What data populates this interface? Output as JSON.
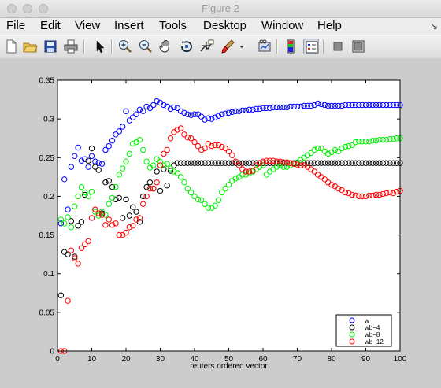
{
  "window": {
    "title": "Figure 2"
  },
  "menu": {
    "items": [
      "File",
      "Edit",
      "View",
      "Insert",
      "Tools",
      "Desktop",
      "Window",
      "Help"
    ]
  },
  "toolbar": {
    "icons": [
      "new-figure",
      "open-file",
      "save",
      "print",
      "select-arrow",
      "zoom-in",
      "zoom-out",
      "pan-hand",
      "rotate-3d",
      "data-cursor",
      "brush",
      "brush-dropdown",
      "link-plot",
      "insert-colorbar",
      "insert-legend",
      "hide-plot-tools",
      "show-plot-tools"
    ]
  },
  "colors": {
    "w": "#0000ff",
    "wb4": "#000000",
    "wb8": "#00ee00",
    "wb12": "#ff0000"
  },
  "chart_data": {
    "type": "scatter",
    "title": "",
    "xlabel": "reuters ordered vector",
    "ylabel": "",
    "xlim": [
      0,
      100
    ],
    "ylim": [
      0,
      0.35
    ],
    "xticks": [
      0,
      10,
      20,
      30,
      40,
      50,
      60,
      70,
      80,
      90,
      100
    ],
    "xticklabels": [
      "0",
      "10",
      "20",
      "30",
      "40",
      "50",
      "60",
      "70",
      "80",
      "90",
      "100"
    ],
    "yticks": [
      0,
      0.05,
      0.1,
      0.15,
      0.2,
      0.25,
      0.3,
      0.35
    ],
    "yticklabels": [
      "0",
      "0.05",
      "0.1",
      "0.15",
      "0.2",
      "0.25",
      "0.3",
      "0.35"
    ],
    "grid": false,
    "legend_position": "bottom-right",
    "marker": "circle",
    "series": [
      {
        "name": "w",
        "color": "#0000ff",
        "x": [
          1,
          2,
          3,
          4,
          5,
          6,
          7,
          8,
          9,
          10,
          11,
          12,
          13,
          14,
          15,
          16,
          17,
          18,
          19,
          20,
          21,
          22,
          23,
          24,
          25,
          26,
          27,
          28,
          29,
          30,
          31,
          32,
          33,
          34,
          35,
          36,
          37,
          38,
          39,
          40,
          41,
          42,
          43,
          44,
          45,
          46,
          47,
          48,
          49,
          50,
          51,
          52,
          53,
          54,
          55,
          56,
          57,
          58,
          59,
          60,
          61,
          62,
          63,
          64,
          65,
          66,
          67,
          68,
          69,
          70,
          71,
          72,
          73,
          74,
          75,
          76,
          77,
          78,
          79,
          80,
          81,
          82,
          83,
          84,
          85,
          86,
          87,
          88,
          89,
          90,
          91,
          92,
          93,
          94,
          95,
          96,
          97,
          98,
          99,
          100
        ],
        "y": [
          0.165,
          0.222,
          0.183,
          0.238,
          0.252,
          0.263,
          0.246,
          0.248,
          0.238,
          0.252,
          0.245,
          0.243,
          0.242,
          0.26,
          0.265,
          0.272,
          0.28,
          0.284,
          0.29,
          0.31,
          0.298,
          0.302,
          0.306,
          0.312,
          0.31,
          0.316,
          0.314,
          0.318,
          0.323,
          0.321,
          0.318,
          0.316,
          0.313,
          0.315,
          0.314,
          0.31,
          0.308,
          0.306,
          0.305,
          0.306,
          0.306,
          0.303,
          0.299,
          0.301,
          0.3,
          0.302,
          0.304,
          0.306,
          0.307,
          0.308,
          0.309,
          0.31,
          0.31,
          0.311,
          0.311,
          0.312,
          0.312,
          0.313,
          0.313,
          0.314,
          0.314,
          0.314,
          0.315,
          0.315,
          0.315,
          0.315,
          0.315,
          0.316,
          0.316,
          0.316,
          0.316,
          0.317,
          0.317,
          0.317,
          0.318,
          0.32,
          0.319,
          0.318,
          0.317,
          0.317,
          0.317,
          0.317,
          0.317,
          0.318,
          0.318,
          0.318,
          0.318,
          0.318,
          0.318,
          0.318,
          0.318,
          0.318,
          0.318,
          0.318,
          0.318,
          0.318,
          0.318,
          0.318,
          0.318,
          0.318
        ]
      },
      {
        "name": "wb−4",
        "color": "#000000",
        "x": [
          1,
          2,
          3,
          4,
          5,
          6,
          7,
          8,
          9,
          10,
          11,
          12,
          13,
          14,
          15,
          16,
          17,
          18,
          19,
          20,
          21,
          22,
          23,
          24,
          25,
          26,
          27,
          28,
          29,
          30,
          31,
          32,
          33,
          34,
          35,
          36,
          37,
          38,
          39,
          40,
          41,
          42,
          43,
          44,
          45,
          46,
          47,
          48,
          49,
          50,
          51,
          52,
          53,
          54,
          55,
          56,
          57,
          58,
          59,
          60,
          61,
          62,
          63,
          64,
          65,
          66,
          67,
          68,
          69,
          70,
          71,
          72,
          73,
          74,
          75,
          76,
          77,
          78,
          79,
          80,
          81,
          82,
          83,
          84,
          85,
          86,
          87,
          88,
          89,
          90,
          91,
          92,
          93,
          94,
          95,
          96,
          97,
          98,
          99,
          100
        ],
        "y": [
          0.072,
          0.128,
          0.125,
          0.168,
          0.122,
          0.162,
          0.167,
          0.202,
          0.246,
          0.262,
          0.238,
          0.234,
          0.178,
          0.218,
          0.22,
          0.212,
          0.196,
          0.198,
          0.172,
          0.196,
          0.175,
          0.186,
          0.18,
          0.167,
          0.2,
          0.212,
          0.218,
          0.21,
          0.232,
          0.207,
          0.235,
          0.214,
          0.233,
          0.24,
          0.243,
          0.243,
          0.243,
          0.243,
          0.243,
          0.243,
          0.243,
          0.243,
          0.243,
          0.243,
          0.243,
          0.243,
          0.243,
          0.243,
          0.243,
          0.243,
          0.243,
          0.243,
          0.243,
          0.243,
          0.243,
          0.243,
          0.243,
          0.243,
          0.243,
          0.243,
          0.243,
          0.243,
          0.243,
          0.243,
          0.243,
          0.243,
          0.243,
          0.243,
          0.243,
          0.243,
          0.243,
          0.243,
          0.243,
          0.243,
          0.243,
          0.243,
          0.243,
          0.243,
          0.243,
          0.243,
          0.243,
          0.243,
          0.243,
          0.243,
          0.243,
          0.243,
          0.243,
          0.243,
          0.243,
          0.243,
          0.243,
          0.243,
          0.243,
          0.243,
          0.243,
          0.243,
          0.243,
          0.243,
          0.243,
          0.243
        ]
      },
      {
        "name": "wb−8",
        "color": "#00ee00",
        "x": [
          1,
          2,
          3,
          4,
          5,
          6,
          7,
          8,
          9,
          10,
          11,
          12,
          13,
          14,
          15,
          16,
          17,
          18,
          19,
          20,
          21,
          22,
          23,
          24,
          25,
          26,
          27,
          28,
          29,
          30,
          31,
          32,
          33,
          34,
          35,
          36,
          37,
          38,
          39,
          40,
          41,
          42,
          43,
          44,
          45,
          46,
          47,
          48,
          49,
          50,
          51,
          52,
          53,
          54,
          55,
          56,
          57,
          58,
          59,
          60,
          61,
          62,
          63,
          64,
          65,
          66,
          67,
          68,
          69,
          70,
          71,
          72,
          73,
          74,
          75,
          76,
          77,
          78,
          79,
          80,
          81,
          82,
          83,
          84,
          85,
          86,
          87,
          88,
          89,
          90,
          91,
          92,
          93,
          94,
          95,
          96,
          97,
          98,
          99,
          100
        ],
        "y": [
          0.17,
          0.165,
          0.173,
          0.16,
          0.187,
          0.2,
          0.212,
          0.205,
          0.2,
          0.206,
          0.18,
          0.175,
          0.18,
          0.176,
          0.19,
          0.198,
          0.212,
          0.228,
          0.236,
          0.245,
          0.255,
          0.268,
          0.27,
          0.273,
          0.26,
          0.245,
          0.237,
          0.24,
          0.248,
          0.245,
          0.24,
          0.242,
          0.236,
          0.232,
          0.23,
          0.225,
          0.218,
          0.21,
          0.205,
          0.2,
          0.196,
          0.195,
          0.19,
          0.185,
          0.185,
          0.188,
          0.195,
          0.205,
          0.21,
          0.215,
          0.22,
          0.223,
          0.225,
          0.228,
          0.228,
          0.23,
          0.232,
          0.235,
          0.238,
          0.24,
          0.228,
          0.232,
          0.235,
          0.238,
          0.24,
          0.238,
          0.238,
          0.24,
          0.242,
          0.244,
          0.247,
          0.25,
          0.253,
          0.256,
          0.26,
          0.262,
          0.262,
          0.258,
          0.255,
          0.257,
          0.26,
          0.258,
          0.262,
          0.264,
          0.265,
          0.266,
          0.27,
          0.271,
          0.271,
          0.271,
          0.271,
          0.272,
          0.272,
          0.273,
          0.273,
          0.273,
          0.274,
          0.274,
          0.275,
          0.275
        ]
      },
      {
        "name": "wb−12",
        "color": "#ff0000",
        "x": [
          1,
          2,
          3,
          4,
          5,
          6,
          7,
          8,
          9,
          10,
          11,
          12,
          13,
          14,
          15,
          16,
          17,
          18,
          19,
          20,
          21,
          22,
          23,
          24,
          25,
          26,
          27,
          28,
          29,
          30,
          31,
          32,
          33,
          34,
          35,
          36,
          37,
          38,
          39,
          40,
          41,
          42,
          43,
          44,
          45,
          46,
          47,
          48,
          49,
          50,
          51,
          52,
          53,
          54,
          55,
          56,
          57,
          58,
          59,
          60,
          61,
          62,
          63,
          64,
          65,
          66,
          67,
          68,
          69,
          70,
          71,
          72,
          73,
          74,
          75,
          76,
          77,
          78,
          79,
          80,
          81,
          82,
          83,
          84,
          85,
          86,
          87,
          88,
          89,
          90,
          91,
          92,
          93,
          94,
          95,
          96,
          97,
          98,
          99,
          100
        ],
        "y": [
          0.0,
          0.0,
          0.065,
          0.13,
          0.12,
          0.113,
          0.133,
          0.138,
          0.142,
          0.172,
          0.183,
          0.178,
          0.176,
          0.163,
          0.17,
          0.163,
          0.165,
          0.15,
          0.15,
          0.153,
          0.16,
          0.162,
          0.17,
          0.172,
          0.19,
          0.2,
          0.21,
          0.21,
          0.218,
          0.24,
          0.255,
          0.26,
          0.275,
          0.283,
          0.286,
          0.288,
          0.28,
          0.276,
          0.275,
          0.27,
          0.265,
          0.26,
          0.262,
          0.268,
          0.265,
          0.266,
          0.266,
          0.264,
          0.262,
          0.258,
          0.253,
          0.245,
          0.24,
          0.235,
          0.232,
          0.232,
          0.233,
          0.24,
          0.243,
          0.245,
          0.246,
          0.246,
          0.246,
          0.245,
          0.245,
          0.244,
          0.244,
          0.243,
          0.242,
          0.241,
          0.24,
          0.24,
          0.238,
          0.235,
          0.232,
          0.228,
          0.225,
          0.222,
          0.218,
          0.215,
          0.213,
          0.21,
          0.208,
          0.205,
          0.204,
          0.202,
          0.201,
          0.2,
          0.2,
          0.2,
          0.201,
          0.201,
          0.202,
          0.202,
          0.203,
          0.204,
          0.205,
          0.204,
          0.206,
          0.207
        ]
      }
    ]
  }
}
